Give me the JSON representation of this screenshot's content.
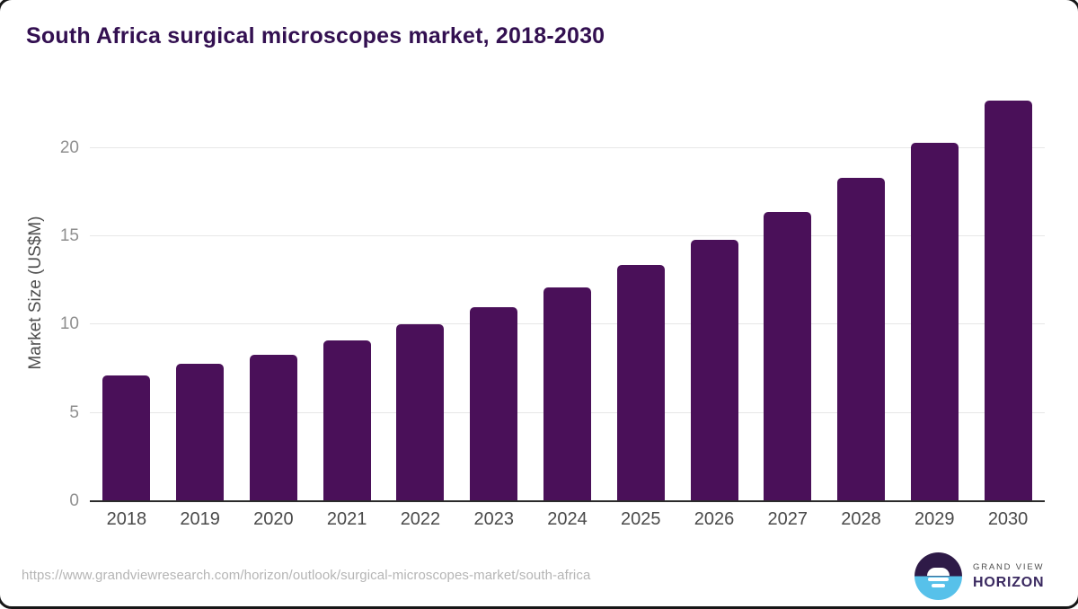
{
  "title": "South Africa surgical microscopes market, 2018-2030",
  "chart_data": {
    "type": "bar",
    "categories": [
      "2018",
      "2019",
      "2020",
      "2021",
      "2022",
      "2023",
      "2024",
      "2025",
      "2026",
      "2027",
      "2028",
      "2029",
      "2030"
    ],
    "values": [
      7.1,
      7.8,
      8.3,
      9.1,
      10.0,
      11.0,
      12.1,
      13.4,
      14.8,
      16.4,
      18.3,
      20.3,
      22.7
    ],
    "title": "South Africa surgical microscopes market, 2018-2030",
    "xlabel": "",
    "ylabel": "Market Size (US$M)",
    "ylim": [
      0,
      23.3
    ],
    "yticks": [
      0,
      5,
      10,
      15,
      20
    ],
    "grid": "horizontal",
    "legend": "none",
    "bar_color": "#4a1059"
  },
  "colors": {
    "bar": "#4a1059",
    "title_text": "#331051",
    "axis_line": "#2b2b2b",
    "gridline": "#e7e7e7",
    "logo_purple": "#2e1a47",
    "logo_blue": "#57c1ea",
    "logo_wordmark": "#3a2960"
  },
  "footer": {
    "source_url": "https://www.grandviewresearch.com/horizon/outlook/surgical-microscopes-market/south-africa",
    "logo": {
      "line1": "GRAND VIEW",
      "line2": "HORIZON"
    }
  }
}
